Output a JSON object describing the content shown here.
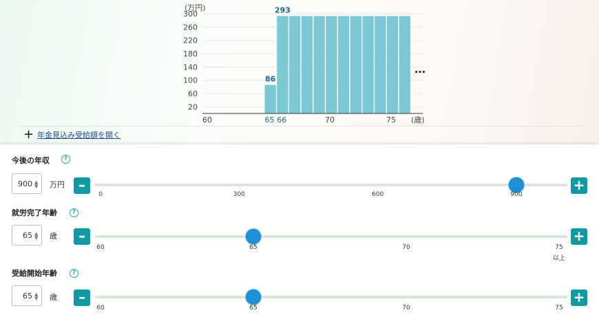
{
  "chart_data": {
    "type": "bar",
    "y_unit": "(万円)",
    "x_unit": "(歳)",
    "yticks": [
      "20",
      "60",
      "100",
      "140",
      "180",
      "220",
      "260",
      "300"
    ],
    "xticks": [
      {
        "label": "60",
        "age": 60
      },
      {
        "label": "65",
        "age": 65,
        "highlight": true
      },
      {
        "label": "66",
        "age": 66,
        "highlight": true
      },
      {
        "label": "70",
        "age": 70
      },
      {
        "label": "75",
        "age": 75
      }
    ],
    "ylim": [
      0,
      300
    ],
    "xlim": [
      60,
      77
    ],
    "ages": [
      65,
      66,
      67,
      68,
      69,
      70,
      71,
      72,
      73,
      74,
      75,
      76
    ],
    "values": [
      86,
      293,
      293,
      293,
      293,
      293,
      293,
      293,
      293,
      293,
      293,
      293
    ],
    "data_labels": [
      {
        "age": 65,
        "text": "86"
      },
      {
        "age": 66,
        "text": "293"
      }
    ],
    "bar_color": "#7cc8d4",
    "grid": true
  },
  "more_menu": "…",
  "pension_link": {
    "icon": "plus-icon",
    "label": "年金見込み受給額を開く"
  },
  "sliders": [
    {
      "title": "今後の年収",
      "value": "900",
      "unit": "万円",
      "min": 0,
      "max": 1000,
      "current": 900,
      "ticks": [
        {
          "label": "0",
          "pos": 0
        },
        {
          "label": "300",
          "pos": 300
        },
        {
          "label": "600",
          "pos": 600
        },
        {
          "label": "900",
          "pos": 900
        }
      ]
    },
    {
      "title": "就労完了年齢",
      "value": "65",
      "unit": "歳",
      "min": 60,
      "max": 75,
      "current": 65,
      "ticks": [
        {
          "label": "60",
          "pos": 60
        },
        {
          "label": "65",
          "pos": 65
        },
        {
          "label": "70",
          "pos": 70
        },
        {
          "label": "75",
          "pos": 75
        }
      ],
      "extra": "以上"
    },
    {
      "title": "受給開始年齢",
      "value": "65",
      "unit": "歳",
      "min": 60,
      "max": 75,
      "current": 65,
      "ticks": [
        {
          "label": "60",
          "pos": 60
        },
        {
          "label": "65",
          "pos": 65
        },
        {
          "label": "70",
          "pos": 70
        },
        {
          "label": "75",
          "pos": 75
        }
      ]
    }
  ],
  "colors": {
    "accent": "#129aa3",
    "knob": "#1f8fd6",
    "link": "#1f4e8c"
  }
}
